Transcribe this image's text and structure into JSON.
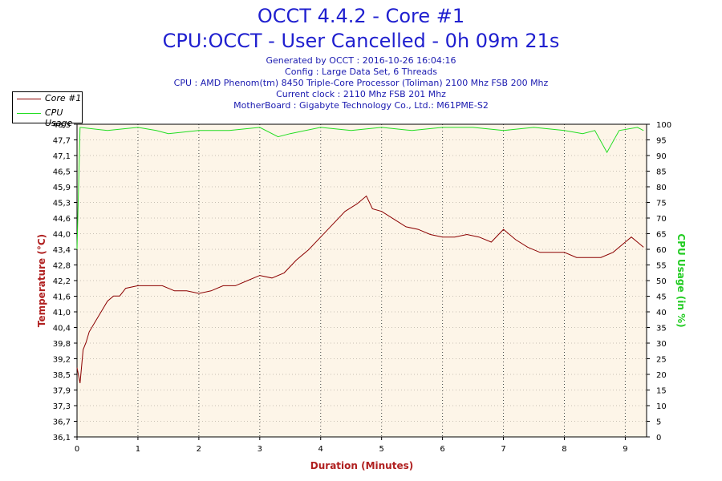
{
  "header": {
    "title_line1": "OCCT 4.4.2 - Core #1",
    "title_line2": "CPU:OCCT - User Cancelled - 0h 09m 21s",
    "info": [
      "Generated by OCCT : 2016-10-26 16:04:16",
      "Config : Large Data Set, 6 Threads",
      "CPU : AMD Phenom(tm) 8450 Triple-Core Processor (Toliman) 2100 Mhz FSB 200 Mhz",
      "Current clock : 2110 Mhz FSB 201 Mhz",
      "MotherBoard : Gigabyte Technology Co., Ltd.: M61PME-S2"
    ]
  },
  "legend": {
    "items": [
      {
        "label": "Core #1",
        "color": "#8b0000"
      },
      {
        "label": "CPU Usage",
        "color": "#22dd22"
      }
    ]
  },
  "colors": {
    "temperature": "#8b0000",
    "cpu_usage": "#22dd22",
    "plot_background": "#fdf5e8",
    "title": "#1f1fcf"
  },
  "chart_data": {
    "type": "line",
    "xlabel": "Duration (Minutes)",
    "ylabel": "Temperature (°C)",
    "y2label": "CPU Usage (in %)",
    "xlim": [
      0,
      9.35
    ],
    "ylim": [
      36.1,
      48.3
    ],
    "y2lim": [
      0,
      100
    ],
    "x_ticks": [
      "0",
      "1",
      "2",
      "3",
      "4",
      "5",
      "6",
      "7",
      "8",
      "9"
    ],
    "y_ticks": [
      "36,1",
      "36,7",
      "37,3",
      "37,9",
      "38,5",
      "39,2",
      "39,8",
      "40,4",
      "41,0",
      "41,6",
      "42,2",
      "42,8",
      "43,4",
      "44,0",
      "44,6",
      "45,3",
      "45,9",
      "46,5",
      "47,1",
      "47,7",
      "48,3"
    ],
    "y2_ticks": [
      "0",
      "5",
      "10",
      "15",
      "20",
      "25",
      "30",
      "35",
      "40",
      "45",
      "50",
      "55",
      "60",
      "65",
      "70",
      "75",
      "80",
      "85",
      "90",
      "95",
      "100"
    ],
    "grid": true,
    "legend_position": "top-left",
    "series": [
      {
        "name": "Core #1",
        "axis": "left",
        "x": [
          0,
          0.05,
          0.1,
          0.15,
          0.2,
          0.3,
          0.4,
          0.5,
          0.6,
          0.7,
          0.8,
          1.0,
          1.2,
          1.4,
          1.6,
          1.8,
          2.0,
          2.2,
          2.4,
          2.6,
          2.8,
          3.0,
          3.2,
          3.4,
          3.6,
          3.8,
          4.0,
          4.2,
          4.4,
          4.6,
          4.75,
          4.85,
          5.0,
          5.2,
          5.4,
          5.6,
          5.8,
          6.0,
          6.2,
          6.4,
          6.6,
          6.8,
          7.0,
          7.2,
          7.4,
          7.6,
          7.8,
          8.0,
          8.2,
          8.4,
          8.6,
          8.8,
          9.0,
          9.1,
          9.2,
          9.3
        ],
        "y": [
          38.8,
          38.2,
          39.5,
          39.8,
          40.2,
          40.6,
          41.0,
          41.4,
          41.6,
          41.6,
          41.9,
          42.0,
          42.0,
          42.0,
          41.8,
          41.8,
          41.7,
          41.8,
          42.0,
          42.0,
          42.2,
          42.4,
          42.3,
          42.5,
          43.0,
          43.4,
          43.9,
          44.4,
          44.9,
          45.2,
          45.5,
          45.0,
          44.9,
          44.6,
          44.3,
          44.2,
          44.0,
          43.9,
          43.9,
          44.0,
          43.9,
          43.7,
          44.2,
          43.8,
          43.5,
          43.3,
          43.3,
          43.3,
          43.1,
          43.1,
          43.1,
          43.3,
          43.7,
          43.9,
          43.7,
          43.5
        ]
      },
      {
        "name": "CPU Usage",
        "axis": "right",
        "x": [
          0,
          0.05,
          0.5,
          1.0,
          1.3,
          1.5,
          2.0,
          2.5,
          3.0,
          3.3,
          3.5,
          4.0,
          4.5,
          5.0,
          5.5,
          6.0,
          6.5,
          7.0,
          7.5,
          8.0,
          8.3,
          8.5,
          8.7,
          8.9,
          9.2,
          9.3
        ],
        "y": [
          60,
          99,
          98,
          99,
          98,
          97,
          98,
          98,
          99,
          96,
          97,
          99,
          98,
          99,
          98,
          99,
          99,
          98,
          99,
          98,
          97,
          98,
          91,
          98,
          99,
          98
        ]
      }
    ]
  }
}
